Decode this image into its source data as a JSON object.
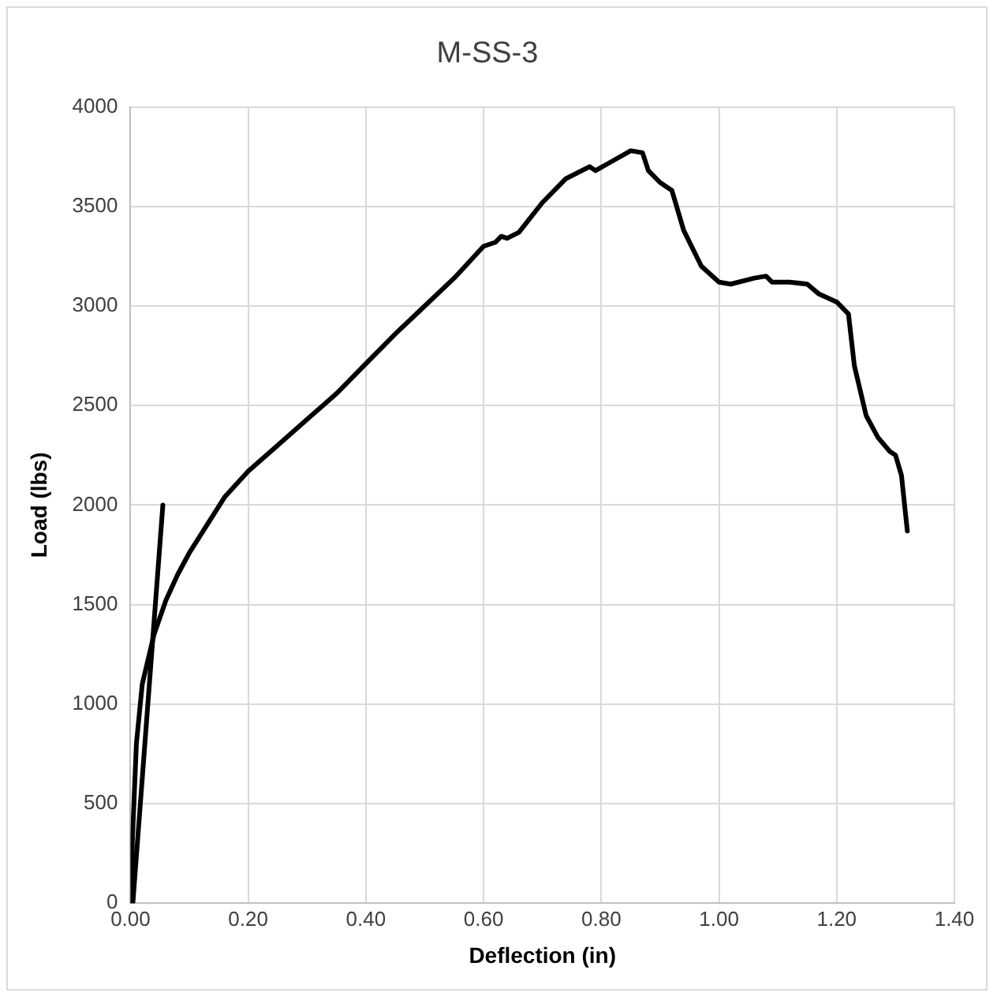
{
  "chart_data": {
    "type": "line",
    "title": "M-SS-3",
    "xlabel": "Deflection (in)",
    "ylabel": "Load (lbs)",
    "xlim": [
      0,
      1.4
    ],
    "xticks": [
      {
        "value": 0,
        "label": "0.00"
      },
      {
        "value": 0.2,
        "label": "0.20"
      },
      {
        "value": 0.4,
        "label": "0.40"
      },
      {
        "value": 0.6,
        "label": "0.60"
      },
      {
        "value": 0.8,
        "label": "0.80"
      },
      {
        "value": 1,
        "label": "1.00"
      },
      {
        "value": 1.2,
        "label": "1.20"
      },
      {
        "value": 1.4,
        "label": "1.40"
      }
    ],
    "ylim": [
      0,
      4000
    ],
    "yticks": [
      0,
      500,
      1000,
      1500,
      2000,
      2500,
      3000,
      3500,
      4000
    ],
    "grid": true,
    "legend": false,
    "marker": "none",
    "line_style": "solid",
    "series": [
      {
        "color": "#000000",
        "x": [
          0.002,
          0.003,
          0.01,
          0.02,
          0.04,
          0.06,
          0.08,
          0.1,
          0.13,
          0.16,
          0.2,
          0.25,
          0.3,
          0.35,
          0.4,
          0.45,
          0.5,
          0.55,
          0.6,
          0.62,
          0.63,
          0.64,
          0.66,
          0.7,
          0.74,
          0.78,
          0.79,
          0.82,
          0.85,
          0.87,
          0.88,
          0.9,
          0.92,
          0.94,
          0.97,
          1,
          1.02,
          1.06,
          1.08,
          1.09,
          1.12,
          1.15,
          1.17,
          1.2,
          1.22,
          1.23,
          1.25,
          1.27,
          1.29,
          1.3,
          1.31,
          1.32
        ],
        "values": [
          0,
          300,
          800,
          1100,
          1350,
          1520,
          1650,
          1760,
          1900,
          2040,
          2170,
          2300,
          2430,
          2560,
          2710,
          2860,
          3000,
          3140,
          3300,
          3320,
          3350,
          3340,
          3370,
          3520,
          3640,
          3700,
          3680,
          3730,
          3780,
          3770,
          3680,
          3620,
          3580,
          3380,
          3200,
          3120,
          3110,
          3140,
          3150,
          3120,
          3120,
          3110,
          3060,
          3020,
          2960,
          2700,
          2450,
          2340,
          2270,
          2250,
          2150,
          1870
        ]
      },
      {
        "color": "#000000",
        "x": [
          0.004,
          0.055
        ],
        "values": [
          0,
          2000
        ]
      }
    ]
  }
}
